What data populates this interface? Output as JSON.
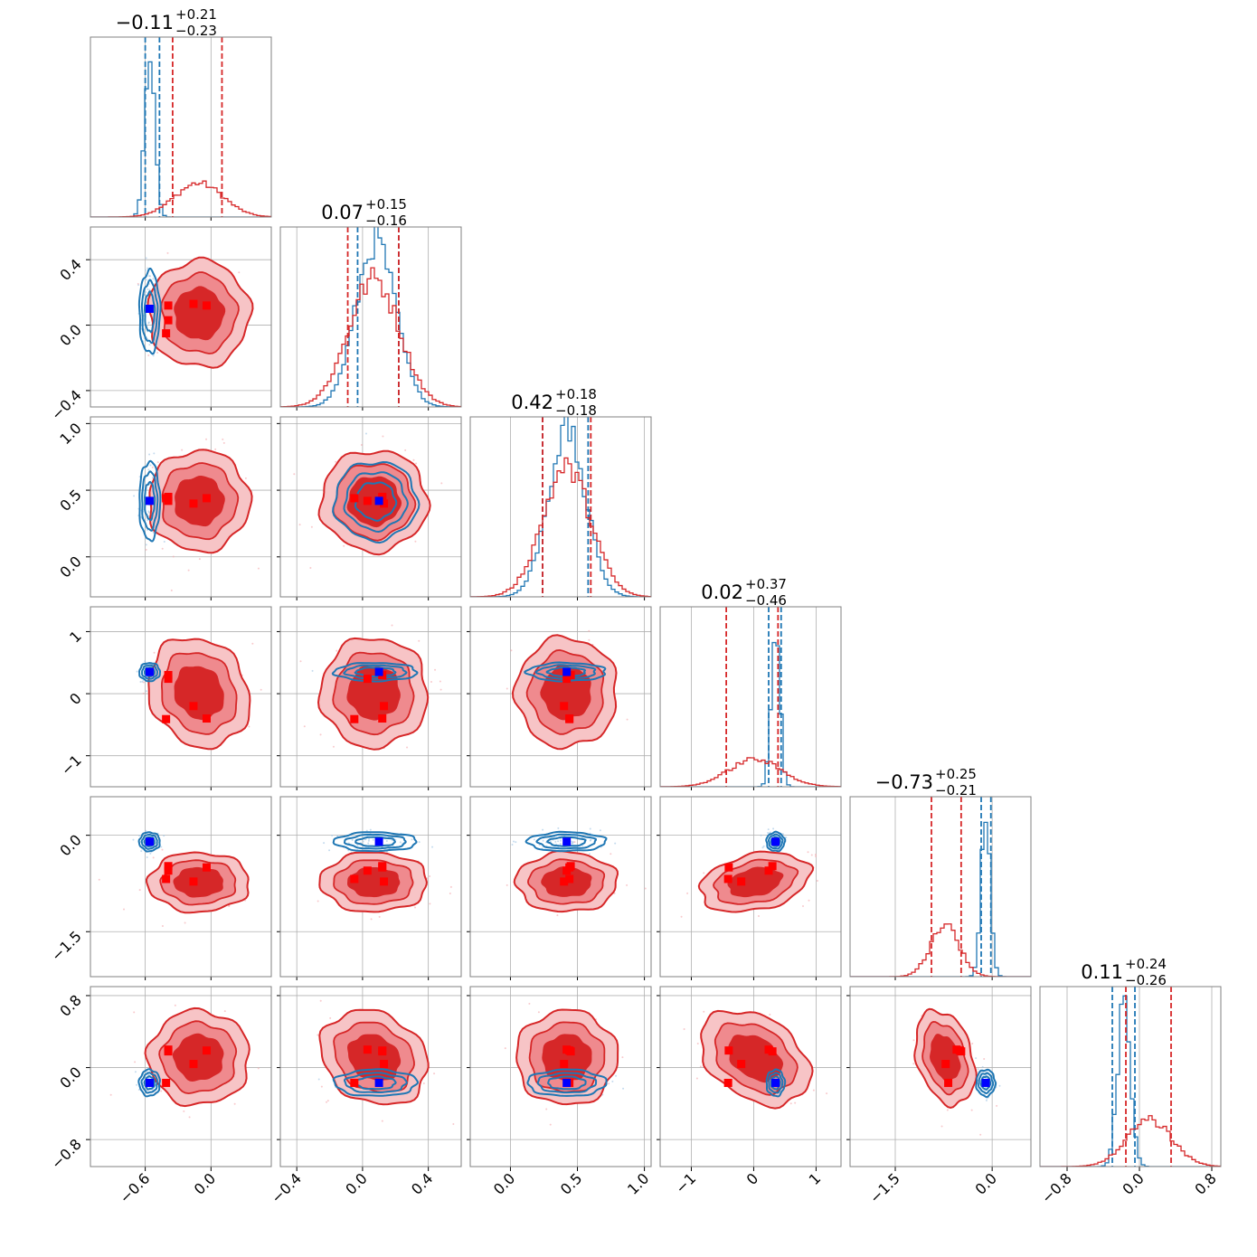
{
  "colors": {
    "primary": "#d62728",
    "secondary": "#1f77b4",
    "marker_primary": "#ff0000",
    "marker_secondary": "#0000ff",
    "grid": "#b0b0b0"
  },
  "chart_data": {
    "type": "corner",
    "parameters": [
      {
        "title": {
          "median": "−0.11",
          "upper": "+0.21",
          "lower": "−0.23"
        },
        "range": [
          -1.1,
          0.55
        ],
        "ticks": [
          -0.6,
          0.0
        ],
        "tick_labels": [
          "−0.6",
          "0.0"
        ],
        "primary": {
          "mean": -0.11,
          "sd": 0.22,
          "quantiles": [
            -0.35,
            0.1
          ]
        },
        "secondary": {
          "mean": -0.56,
          "sd": 0.045,
          "quantiles": [
            -0.6,
            -0.47
          ]
        },
        "markers_primary": [
          -0.39,
          -0.39,
          -0.41,
          -0.16,
          -0.04
        ],
        "marker_secondary": -0.56
      },
      {
        "title": {
          "median": "0.07",
          "upper": "+0.15",
          "lower": "−0.16"
        },
        "range": [
          -0.5,
          0.6
        ],
        "ticks": [
          -0.4,
          0.0,
          0.4
        ],
        "tick_labels": [
          "−0.4",
          "0.0",
          "0.4"
        ],
        "primary": {
          "mean": 0.07,
          "sd": 0.155,
          "quantiles": [
            -0.09,
            0.22
          ]
        },
        "secondary": {
          "mean": 0.08,
          "sd": 0.12,
          "quantiles": [
            -0.03,
            0.22
          ]
        },
        "markers_primary": [
          0.12,
          0.03,
          -0.05,
          0.13,
          0.12
        ],
        "marker_secondary": 0.1
      },
      {
        "title": {
          "median": "0.42",
          "upper": "+0.18",
          "lower": "−0.18"
        },
        "range": [
          -0.3,
          1.05
        ],
        "ticks": [
          0.0,
          0.5,
          1.0
        ],
        "tick_labels": [
          "0.0",
          "0.5",
          "1.0"
        ],
        "primary": {
          "mean": 0.42,
          "sd": 0.18,
          "quantiles": [
            0.24,
            0.6
          ]
        },
        "secondary": {
          "mean": 0.42,
          "sd": 0.14,
          "quantiles": [
            0.24,
            0.58
          ]
        },
        "markers_primary": [
          0.45,
          0.42,
          0.44,
          0.4,
          0.44
        ],
        "marker_secondary": 0.42
      },
      {
        "title": {
          "median": "0.02",
          "upper": "+0.37",
          "lower": "−0.46"
        },
        "range": [
          -1.5,
          1.4
        ],
        "ticks": [
          -1,
          0,
          1
        ],
        "tick_labels": [
          "−1",
          "0",
          "1"
        ],
        "primary": {
          "mean": 0.02,
          "sd": 0.42,
          "quantiles": [
            -0.44,
            0.39
          ]
        },
        "secondary": {
          "mean": 0.35,
          "sd": 0.07,
          "quantiles": [
            0.24,
            0.44
          ]
        },
        "markers_primary": [
          0.3,
          0.24,
          -0.41,
          -0.2,
          -0.4
        ],
        "marker_secondary": 0.35
      },
      {
        "title": {
          "median": "−0.73",
          "upper": "+0.25",
          "lower": "−0.21"
        },
        "range": [
          -2.2,
          0.6
        ],
        "ticks": [
          -1.5,
          0.0
        ],
        "tick_labels": [
          "−1.5",
          "0.0"
        ],
        "primary": {
          "mean": -0.73,
          "sd": 0.22,
          "quantiles": [
            -0.94,
            -0.48
          ]
        },
        "secondary": {
          "mean": -0.1,
          "sd": 0.07,
          "quantiles": [
            -0.17,
            -0.02
          ]
        },
        "markers_primary": [
          -0.48,
          -0.55,
          -0.68,
          -0.72,
          -0.5
        ],
        "marker_secondary": -0.1
      },
      {
        "title": {
          "median": "0.11",
          "upper": "+0.24",
          "lower": "−0.26"
        },
        "range": [
          -1.1,
          0.9
        ],
        "ticks": [
          -0.8,
          0.0,
          0.8
        ],
        "tick_labels": [
          "−0.8",
          "0.0",
          "0.8"
        ],
        "primary": {
          "mean": 0.11,
          "sd": 0.25,
          "quantiles": [
            -0.15,
            0.35
          ]
        },
        "secondary": {
          "mean": -0.17,
          "sd": 0.07,
          "quantiles": [
            -0.3,
            -0.05
          ]
        },
        "markers_primary": [
          0.18,
          0.2,
          -0.17,
          0.04,
          0.19
        ],
        "marker_secondary": -0.17
      }
    ],
    "pairs": [
      {
        "x": 1,
        "y": 0,
        "rho_primary": 0.0,
        "rho_secondary": 0.0
      },
      {
        "x": 2,
        "y": 0,
        "rho_primary": 0.0,
        "rho_secondary": 0.0
      },
      {
        "x": 2,
        "y": 1,
        "rho_primary": 0.0,
        "rho_secondary": 0.0
      },
      {
        "x": 3,
        "y": 0,
        "rho_primary": -0.15,
        "rho_secondary": 0.0
      },
      {
        "x": 3,
        "y": 1,
        "rho_primary": 0.0,
        "rho_secondary": 0.0
      },
      {
        "x": 3,
        "y": 2,
        "rho_primary": 0.0,
        "rho_secondary": 0.0
      },
      {
        "x": 4,
        "y": 0,
        "rho_primary": 0.0,
        "rho_secondary": 0.0
      },
      {
        "x": 4,
        "y": 1,
        "rho_primary": 0.0,
        "rho_secondary": 0.0
      },
      {
        "x": 4,
        "y": 2,
        "rho_primary": 0.0,
        "rho_secondary": 0.0
      },
      {
        "x": 4,
        "y": 3,
        "rho_primary": 0.3,
        "rho_secondary": 0.0
      },
      {
        "x": 5,
        "y": 0,
        "rho_primary": 0.0,
        "rho_secondary": 0.0
      },
      {
        "x": 5,
        "y": 1,
        "rho_primary": -0.2,
        "rho_secondary": 0.0
      },
      {
        "x": 5,
        "y": 2,
        "rho_primary": 0.0,
        "rho_secondary": 0.0
      },
      {
        "x": 5,
        "y": 3,
        "rho_primary": -0.35,
        "rho_secondary": 0.0
      },
      {
        "x": 5,
        "y": 4,
        "rho_primary": -0.3,
        "rho_secondary": 0.0
      }
    ],
    "contour_levels_sigma": [
      1.0,
      1.55,
      2.1
    ],
    "grid": true,
    "legend": "none"
  }
}
